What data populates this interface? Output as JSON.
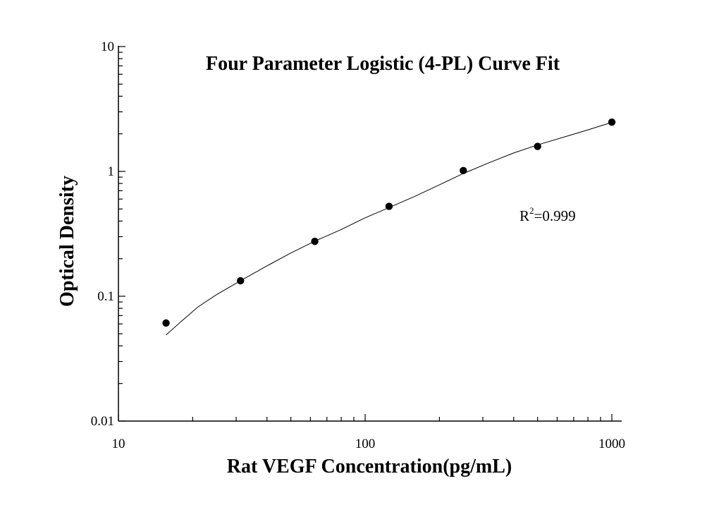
{
  "chart_data": {
    "type": "scatter",
    "title": "Four Parameter Logistic (4-PL) Curve Fit",
    "xlabel": "Rat VEGF Concentration(pg/mL)",
    "ylabel": "Optical Density",
    "x_scale": "log",
    "y_scale": "log",
    "xlim": [
      10,
      1000
    ],
    "ylim": [
      0.01,
      10
    ],
    "x_ticks": [
      10,
      100,
      1000
    ],
    "y_ticks": [
      0.01,
      0.1,
      1,
      10
    ],
    "x_tick_labels": [
      "10",
      "100",
      "1000"
    ],
    "y_tick_labels": [
      "0.01",
      "0.1",
      "1",
      "10"
    ],
    "grid": false,
    "series": [
      {
        "kind": "points",
        "x": [
          15.6,
          31.25,
          62.5,
          125,
          250,
          500,
          1000
        ],
        "y": [
          0.061,
          0.133,
          0.275,
          0.525,
          1.015,
          1.585,
          2.48
        ]
      },
      {
        "kind": "fit-curve",
        "x": [
          15.6,
          18,
          21,
          25,
          31.25,
          40,
          50,
          62.5,
          80,
          100,
          125,
          160,
          200,
          250,
          320,
          400,
          500,
          650,
          800,
          1000
        ],
        "y": [
          0.049,
          0.063,
          0.082,
          0.103,
          0.133,
          0.175,
          0.222,
          0.276,
          0.342,
          0.425,
          0.513,
          0.635,
          0.78,
          0.962,
          1.18,
          1.405,
          1.63,
          1.9,
          2.15,
          2.47
        ]
      }
    ],
    "annotation": {
      "r_label": "R",
      "r_exp": "2",
      "r_value": "=0.999"
    },
    "colors": {
      "points": "#000000",
      "curve": "#000000",
      "axes": "#000000"
    }
  }
}
